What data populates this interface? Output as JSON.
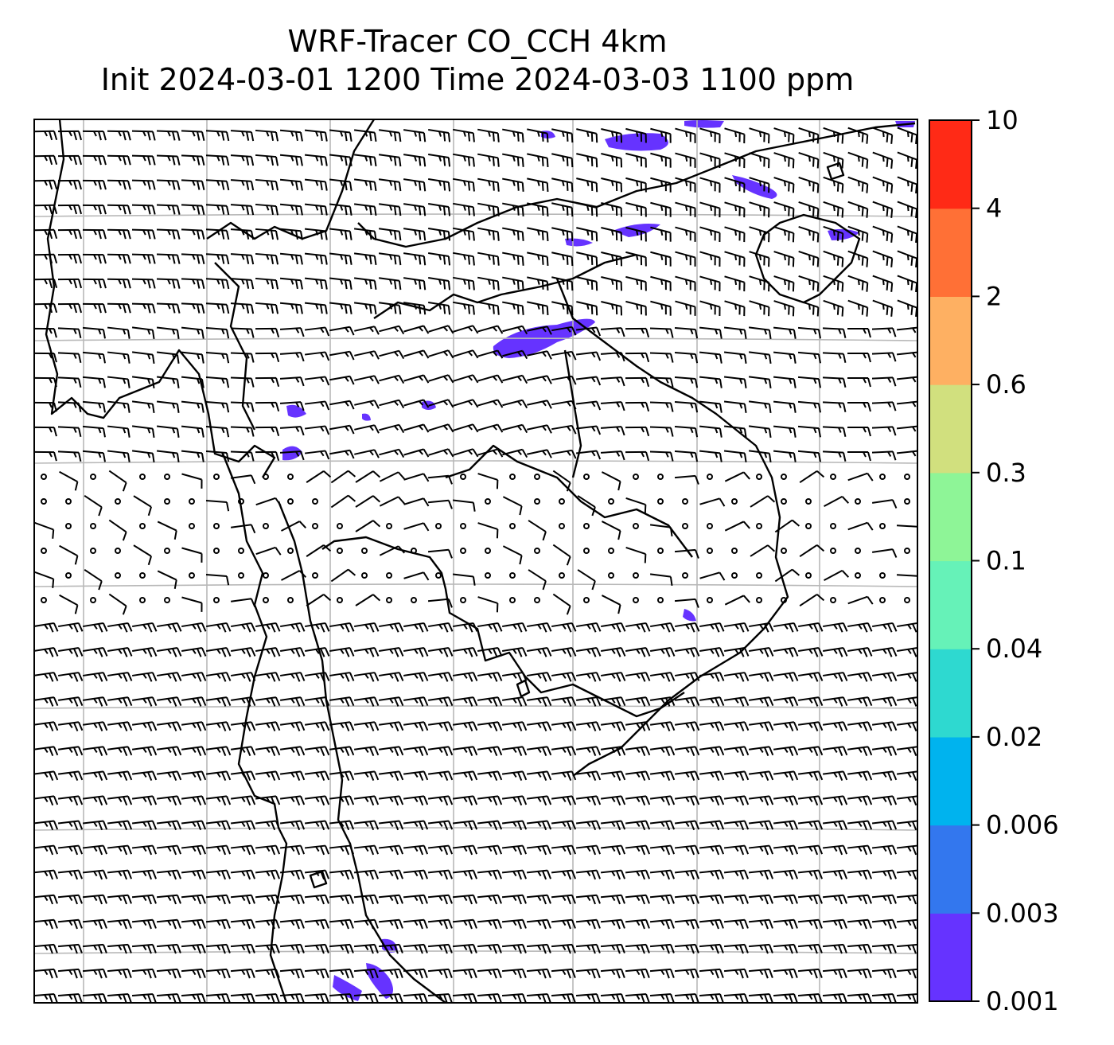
{
  "title": {
    "line1": "WRF-Tracer CO_CCH 4km",
    "line2": "Init 2024-03-01 1200 Time 2024-03-03 1100 ppm"
  },
  "colorbar": {
    "levels": [
      "0.001",
      "0.003",
      "0.006",
      "0.02",
      "0.04",
      "0.1",
      "0.3",
      "0.6",
      "2",
      "4",
      "10"
    ],
    "colors": [
      "#6633ff",
      "#3377ee",
      "#00b3ee",
      "#2ed9d0",
      "#66f2b8",
      "#8ef597",
      "#d1e07e",
      "#feb062",
      "#ff7036",
      "#ff2a16"
    ]
  },
  "map": {
    "field": "CO tracer concentration (filled contours) with wind barbs",
    "gridlines": true,
    "plume_color": "#6633ff"
  }
}
